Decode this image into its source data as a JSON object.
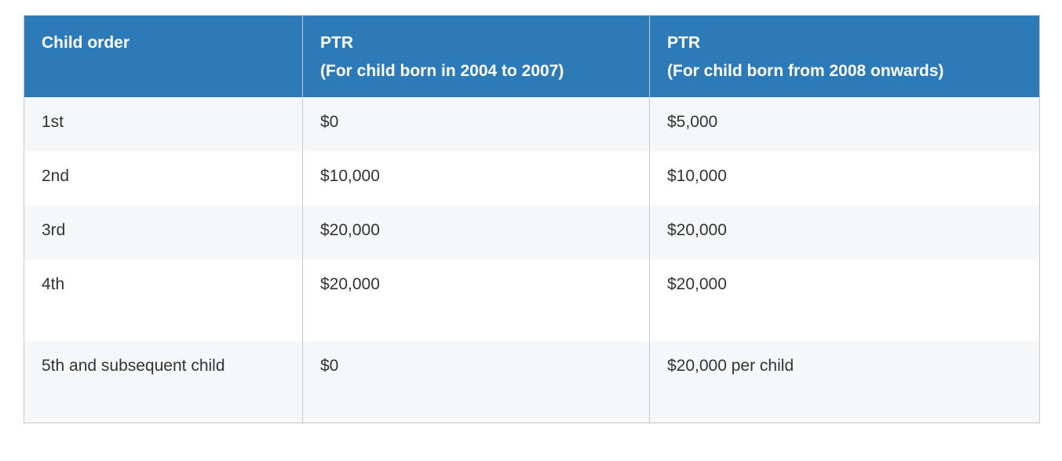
{
  "table": {
    "headers": [
      {
        "line1": "Child order",
        "line2": ""
      },
      {
        "line1": "PTR",
        "line2": "(For child born in 2004 to 2007)"
      },
      {
        "line1": "PTR",
        "line2": "(For child born from 2008 onwards)"
      }
    ],
    "rows": [
      [
        "1st",
        "$0",
        "$5,000"
      ],
      [
        "2nd",
        "$10,000",
        "$10,000"
      ],
      [
        "3rd",
        "$20,000",
        "$20,000"
      ],
      [
        "4th",
        "$20,000",
        "$20,000"
      ],
      [
        "5th and subsequent child",
        "$0",
        "$20,000 per child"
      ]
    ]
  },
  "colors": {
    "header_bg": "#2d7ab8",
    "header_text": "#ffffff",
    "stripe_bg": "#f6f7f8",
    "body_text": "#333333",
    "border": "#c9c9c9"
  }
}
